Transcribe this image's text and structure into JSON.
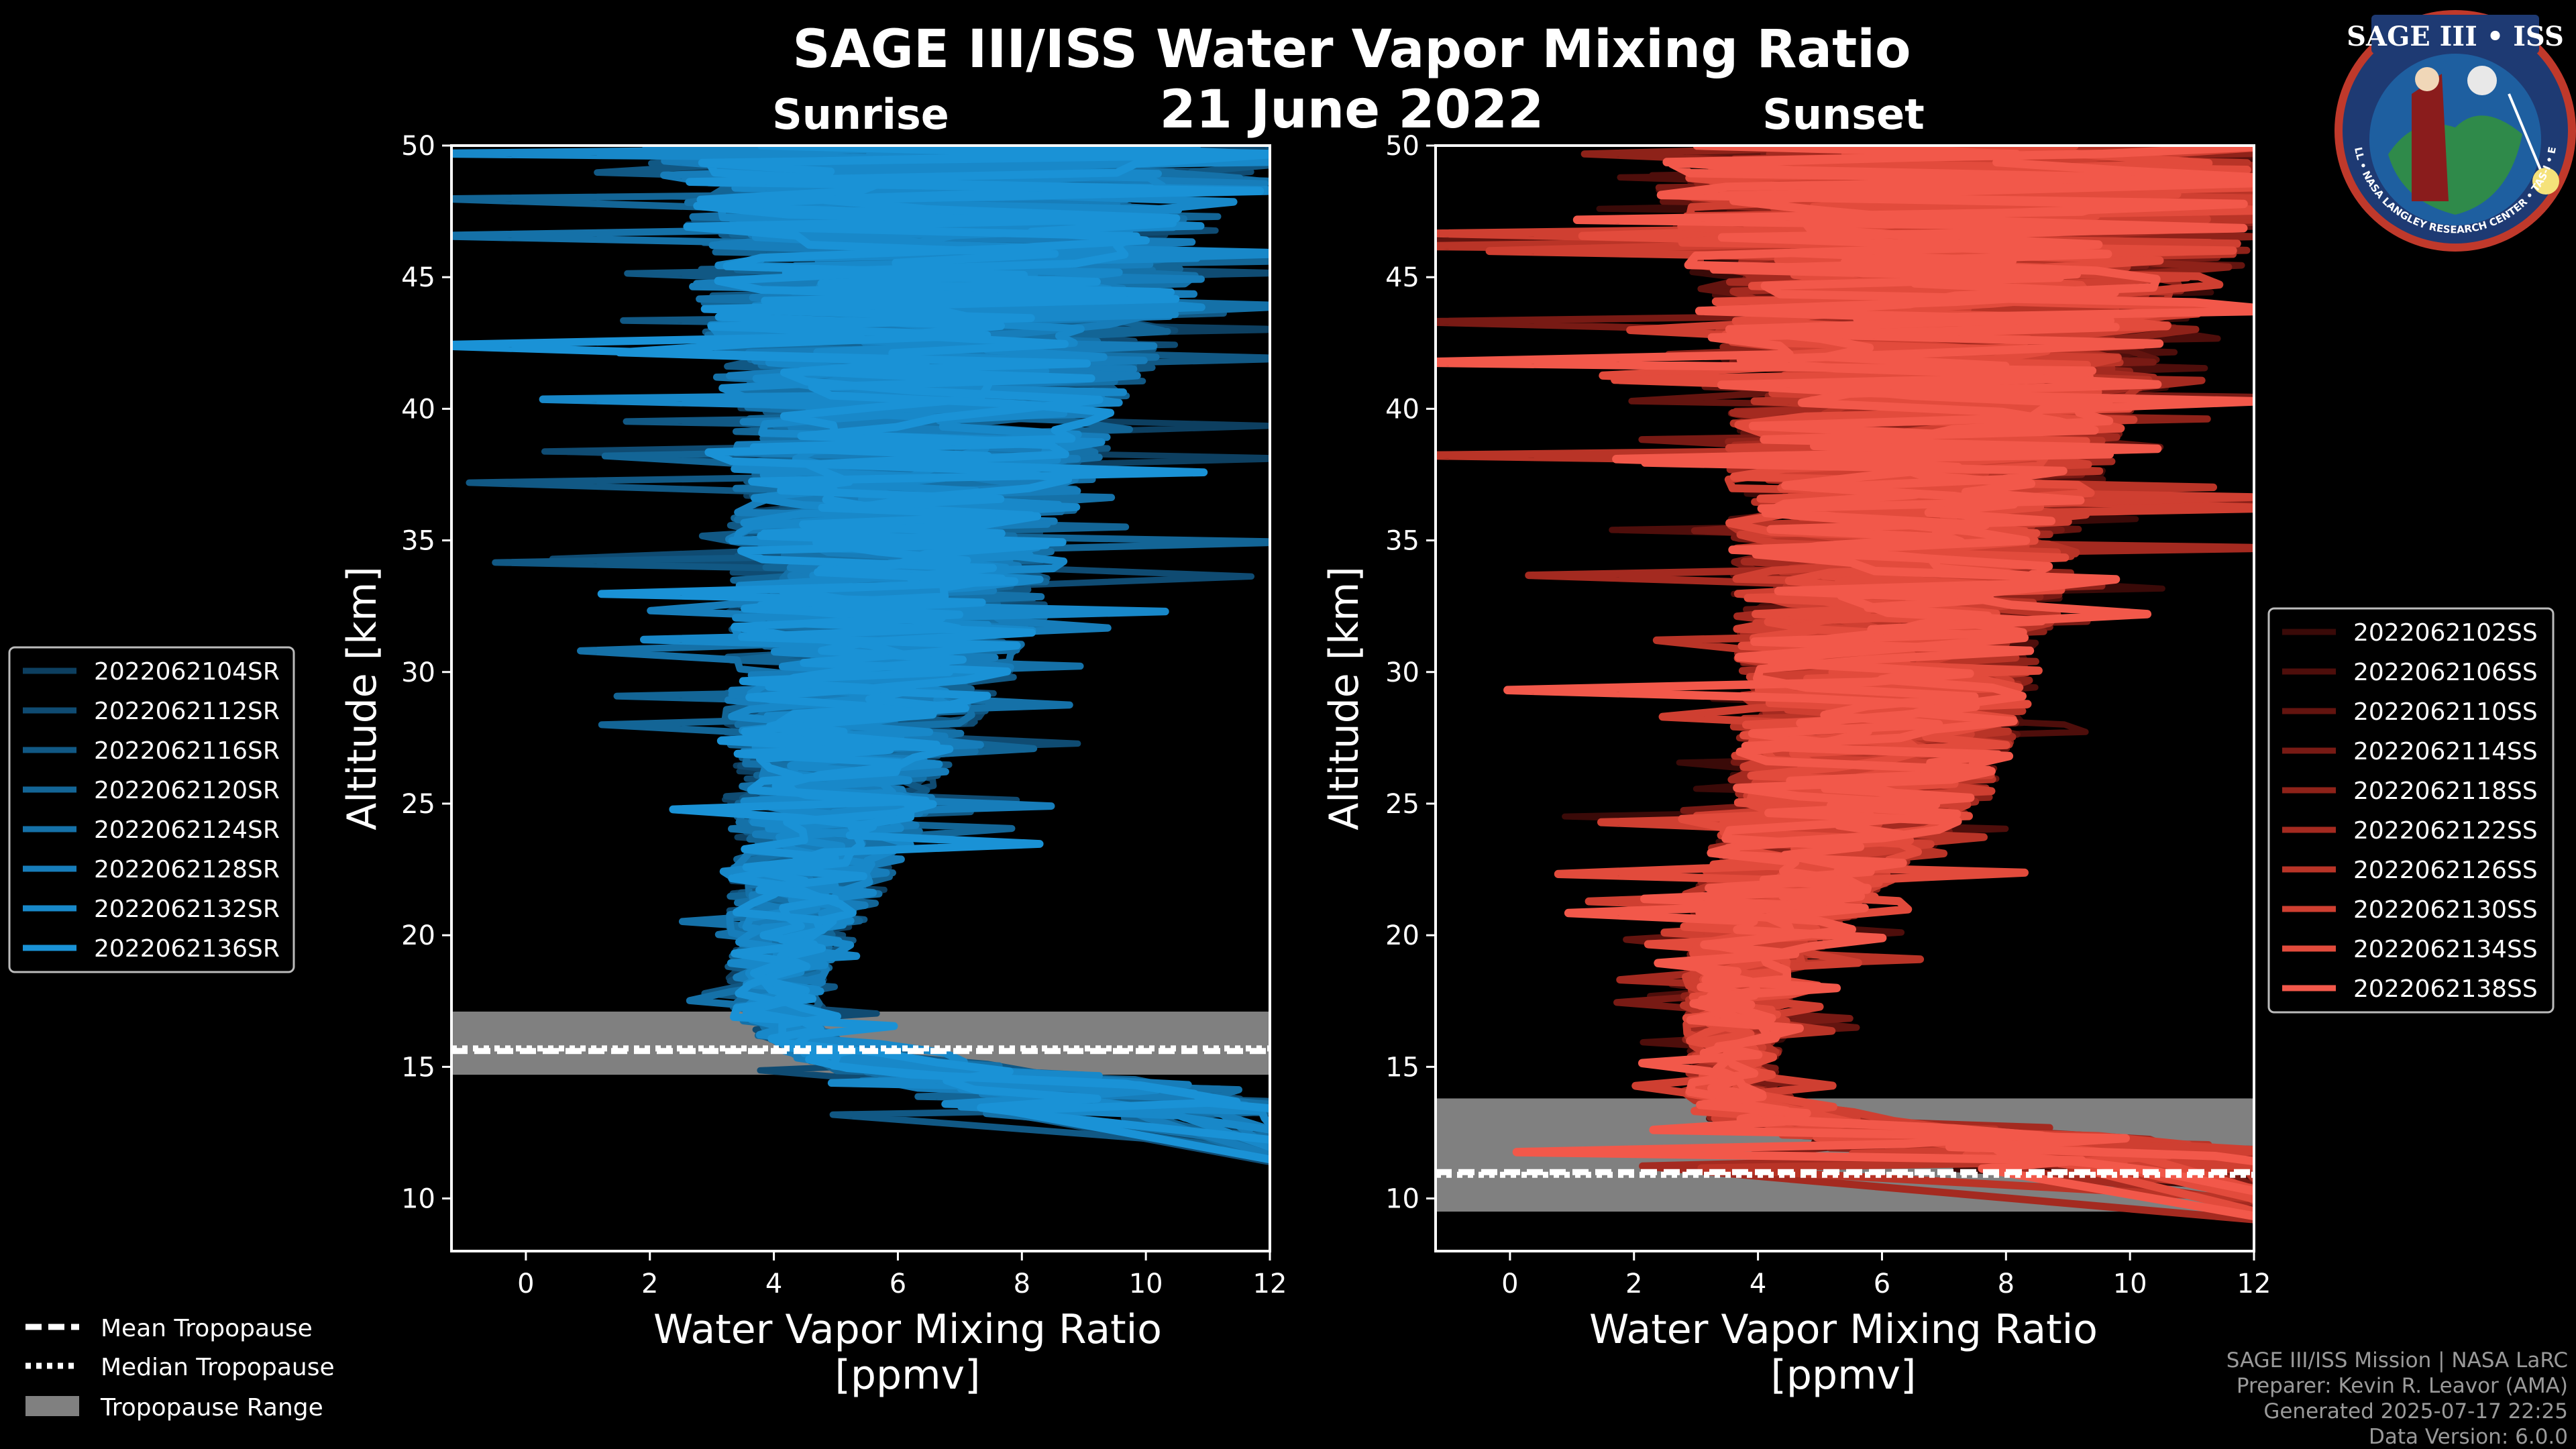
{
  "title": "SAGE III/ISS Water Vapor Mixing Ratio",
  "date": "21 June 2022",
  "colors": {
    "background": "#000000",
    "sunrise": "#1a8fd6",
    "sunset": "#f2584a",
    "tropopause_band": "#808080",
    "frame": "#ffffff"
  },
  "badge": {
    "title": "SAGE III • ISS",
    "ring_text": "BALL • NASA LANGLEY RESEARCH CENTER • TAS-I • ESA",
    "icon": "mission-patch-icon"
  },
  "legend_common": {
    "mean": "Mean Tropopause",
    "median": "Median Tropopause",
    "range": "Tropopause Range"
  },
  "credits": [
    "SAGE III/ISS Mission | NASA LaRC",
    "Preparer: Kevin R. Leavor (AMA)",
    "Generated 2025-07-17 22:25",
    "Data Version: 6.0.0"
  ],
  "chart_data": [
    {
      "type": "line",
      "panel": "sunrise",
      "title": "Sunrise",
      "xlabel": "Water Vapor Mixing Ratio",
      "xunit": "[ppmv]",
      "ylabel": "Altitude [km]",
      "xlim": [
        -1.2,
        12
      ],
      "ylim": [
        8,
        50
      ],
      "xticks": [
        0,
        2,
        4,
        6,
        8,
        10,
        12
      ],
      "yticks": [
        10,
        15,
        20,
        25,
        30,
        35,
        40,
        45,
        50
      ],
      "xtick_labels": [
        "0",
        "2",
        "4",
        "6",
        "8",
        "10",
        "12"
      ],
      "ytick_labels": [
        "10",
        "15",
        "20",
        "25",
        "30",
        "35",
        "40",
        "45",
        "50"
      ],
      "tropopause": {
        "mean": 15.6,
        "median": 15.7,
        "range": [
          14.7,
          17.1
        ]
      },
      "profile_shape": {
        "altitudes": [
          13,
          14,
          15,
          16,
          17,
          18,
          20,
          22,
          25,
          28,
          30,
          32,
          35,
          38,
          40,
          42,
          45,
          48,
          50
        ],
        "mean": [
          11,
          9,
          6.2,
          4.4,
          4.1,
          4.0,
          4.3,
          4.6,
          4.9,
          5.2,
          5.6,
          5.8,
          6.0,
          6.3,
          6.5,
          6.6,
          6.8,
          7.0,
          7.2
        ],
        "spread": [
          2.2,
          2.5,
          1.2,
          0.45,
          0.55,
          0.6,
          0.8,
          1.0,
          1.3,
          1.6,
          1.8,
          2.0,
          2.1,
          2.3,
          2.5,
          2.8,
          3.2,
          3.7,
          4.2
        ]
      },
      "series": [
        {
          "name": "2022062104SR",
          "color": "#0d3f60"
        },
        {
          "name": "2022062112SR",
          "color": "#0f4b72"
        },
        {
          "name": "2022062116SR",
          "color": "#115884"
        },
        {
          "name": "2022062120SR",
          "color": "#136596"
        },
        {
          "name": "2022062124SR",
          "color": "#1571a8"
        },
        {
          "name": "2022062128SR",
          "color": "#177dba"
        },
        {
          "name": "2022062132SR",
          "color": "#1888c9"
        },
        {
          "name": "2022062136SR",
          "color": "#1a92d6"
        }
      ]
    },
    {
      "type": "line",
      "panel": "sunset",
      "title": "Sunset",
      "xlabel": "Water Vapor Mixing Ratio",
      "xunit": "[ppmv]",
      "ylabel": "Altitude [km]",
      "xlim": [
        -1.2,
        12
      ],
      "ylim": [
        8,
        50
      ],
      "xticks": [
        0,
        2,
        4,
        6,
        8,
        10,
        12
      ],
      "yticks": [
        10,
        15,
        20,
        25,
        30,
        35,
        40,
        45,
        50
      ],
      "xtick_labels": [
        "0",
        "2",
        "4",
        "6",
        "8",
        "10",
        "12"
      ],
      "ytick_labels": [
        "10",
        "15",
        "20",
        "25",
        "30",
        "35",
        "40",
        "45",
        "50"
      ],
      "tropopause": {
        "mean": 11.0,
        "median": 10.9,
        "range": [
          9.5,
          13.8
        ]
      },
      "profile_shape": {
        "altitudes": [
          11,
          12,
          13,
          14,
          15,
          16,
          18,
          20,
          22,
          25,
          28,
          30,
          32,
          35,
          38,
          40,
          42,
          45,
          48,
          50
        ],
        "mean": [
          10.5,
          8.5,
          4.5,
          3.6,
          3.6,
          3.6,
          3.7,
          4.1,
          4.6,
          5.6,
          6.0,
          6.1,
          6.2,
          6.4,
          6.6,
          6.8,
          7.0,
          7.3,
          7.5,
          7.7
        ],
        "spread": [
          2.5,
          3.0,
          1.2,
          0.55,
          0.55,
          0.6,
          0.7,
          0.9,
          1.2,
          1.6,
          1.8,
          1.9,
          2.0,
          2.2,
          2.4,
          2.6,
          2.9,
          3.4,
          3.9,
          4.4
        ]
      },
      "series": [
        {
          "name": "2022062102SS",
          "color": "#3a0a08"
        },
        {
          "name": "2022062106SS",
          "color": "#4e0e0b"
        },
        {
          "name": "2022062110SS",
          "color": "#63140f"
        },
        {
          "name": "2022062114SS",
          "color": "#781a14"
        },
        {
          "name": "2022062118SS",
          "color": "#8e2219"
        },
        {
          "name": "2022062122SS",
          "color": "#a42a20"
        },
        {
          "name": "2022062126SS",
          "color": "#b93427"
        },
        {
          "name": "2022062130SS",
          "color": "#cf3f31"
        },
        {
          "name": "2022062134SS",
          "color": "#e24b3c"
        },
        {
          "name": "2022062138SS",
          "color": "#f2584a"
        }
      ]
    }
  ]
}
